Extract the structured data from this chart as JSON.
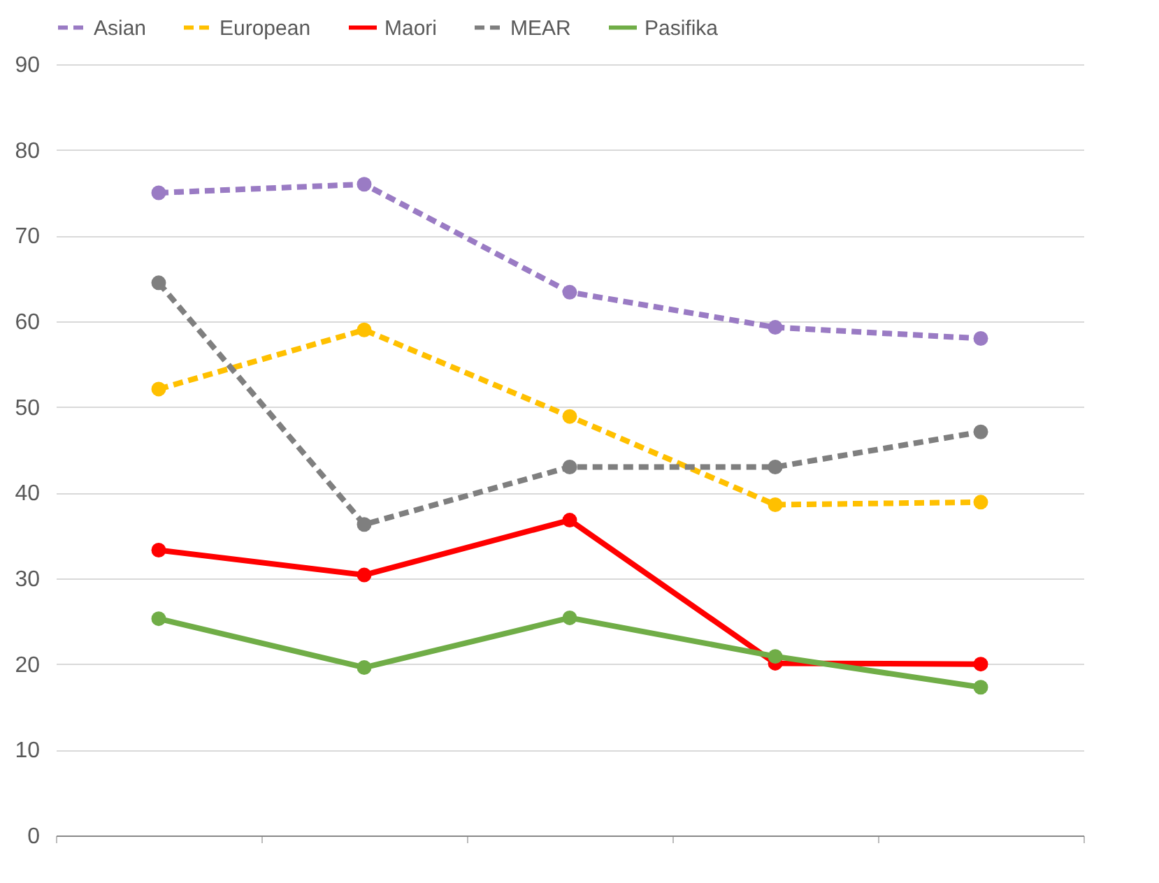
{
  "chart_data": {
    "type": "line",
    "categories": [
      null,
      null,
      null,
      null,
      null
    ],
    "series": [
      {
        "name": "Asian",
        "color": "#9a7bc4",
        "line_style": "dashed",
        "values": [
          75,
          76,
          63.4,
          59.3,
          58
        ]
      },
      {
        "name": "European",
        "color": "#ffc000",
        "line_style": "dashed",
        "values": [
          52.1,
          59,
          48.9,
          38.6,
          38.9
        ]
      },
      {
        "name": "Maori",
        "color": "#ff0000",
        "line_style": "solid",
        "values": [
          33.3,
          30.4,
          36.8,
          20.1,
          20
        ]
      },
      {
        "name": "MEAR",
        "color": "#7f7f7f",
        "line_style": "dashed",
        "values": [
          64.5,
          36.3,
          43,
          43,
          47.1
        ]
      },
      {
        "name": "Pasifika",
        "color": "#70ad47",
        "line_style": "solid",
        "values": [
          25.3,
          19.6,
          25.4,
          20.9,
          17.3
        ]
      }
    ],
    "ylim": [
      0,
      90
    ],
    "yticks": [
      0,
      10,
      20,
      30,
      40,
      50,
      60,
      70,
      80,
      90
    ],
    "grid": "y",
    "legend": "top",
    "marker": "circle"
  }
}
